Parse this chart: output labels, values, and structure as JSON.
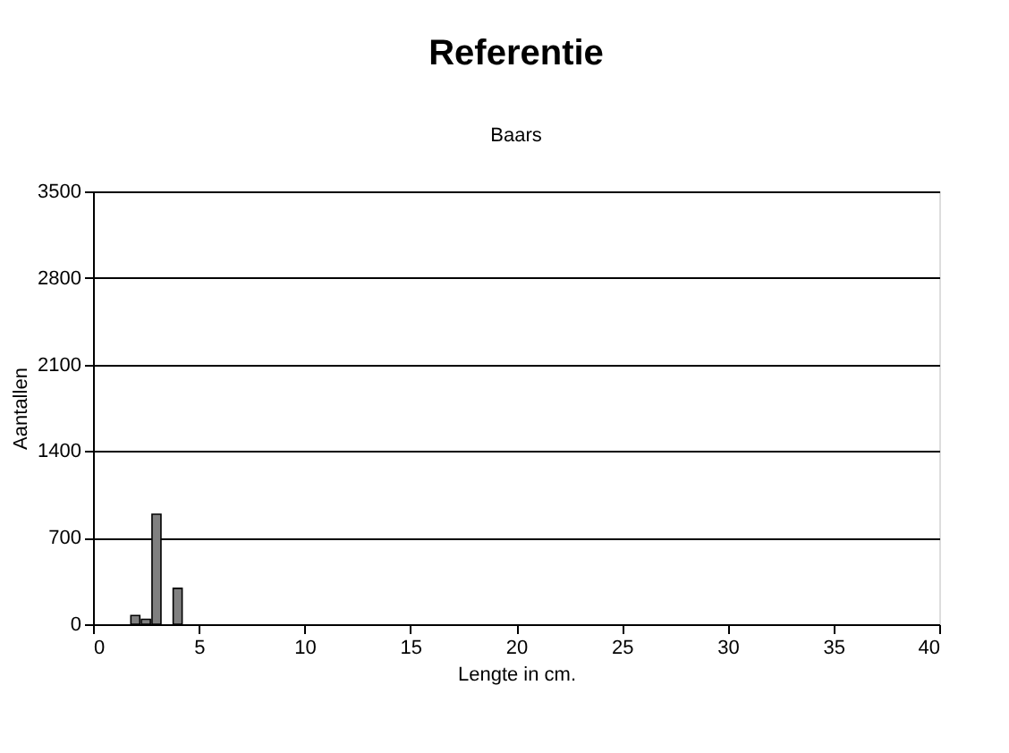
{
  "chart_data": {
    "type": "bar",
    "title": "Referentie",
    "subtitle": "Baars",
    "xlabel": "Lengte in cm.",
    "ylabel": "Aantallen",
    "x": [
      2,
      2.5,
      3,
      4
    ],
    "values": [
      70,
      40,
      890,
      290
    ],
    "color": "#808080",
    "xlim": [
      0,
      40
    ],
    "xticks": [
      0,
      5,
      10,
      15,
      20,
      25,
      30,
      35,
      40
    ],
    "ylim": [
      0,
      3500
    ],
    "yticks": [
      0,
      700,
      1400,
      2100,
      2800,
      3500
    ],
    "grid": "y"
  }
}
